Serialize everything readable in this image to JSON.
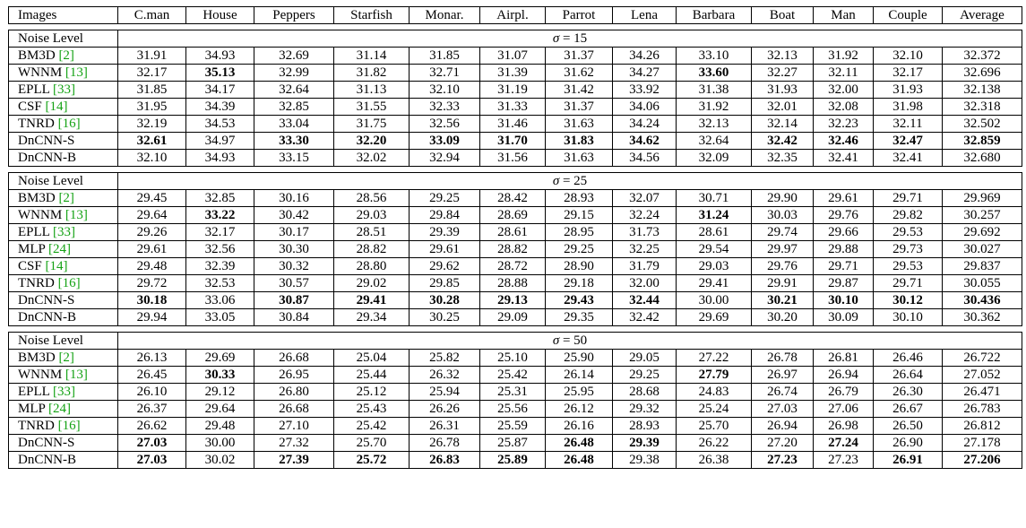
{
  "header": [
    "Images",
    "C.man",
    "House",
    "Peppers",
    "Starfish",
    "Monar.",
    "Airpl.",
    "Parrot",
    "Lena",
    "Barbara",
    "Boat",
    "Man",
    "Couple",
    "Average"
  ],
  "sections": [
    {
      "label": "Noise Level",
      "sigma_symbol": "σ",
      "sigma_eq": "= 15",
      "rows": [
        {
          "method": "BM3D",
          "cite": "[2]",
          "values": [
            "31.91",
            "34.93",
            "32.69",
            "31.14",
            "31.85",
            "31.07",
            "31.37",
            "34.26",
            "33.10",
            "32.13",
            "31.92",
            "32.10",
            "32.372"
          ],
          "bold": []
        },
        {
          "method": "WNNM",
          "cite": "[13]",
          "values": [
            "32.17",
            "35.13",
            "32.99",
            "31.82",
            "32.71",
            "31.39",
            "31.62",
            "34.27",
            "33.60",
            "32.27",
            "32.11",
            "32.17",
            "32.696"
          ],
          "bold": [
            1,
            8
          ]
        },
        {
          "method": "EPLL",
          "cite": "[33]",
          "values": [
            "31.85",
            "34.17",
            "32.64",
            "31.13",
            "32.10",
            "31.19",
            "31.42",
            "33.92",
            "31.38",
            "31.93",
            "32.00",
            "31.93",
            "32.138"
          ],
          "bold": []
        },
        {
          "method": "CSF",
          "cite": "[14]",
          "values": [
            "31.95",
            "34.39",
            "32.85",
            "31.55",
            "32.33",
            "31.33",
            "31.37",
            "34.06",
            "31.92",
            "32.01",
            "32.08",
            "31.98",
            "32.318"
          ],
          "bold": []
        },
        {
          "method": "TNRD",
          "cite": "[16]",
          "values": [
            "32.19",
            "34.53",
            "33.04",
            "31.75",
            "32.56",
            "31.46",
            "31.63",
            "34.24",
            "32.13",
            "32.14",
            "32.23",
            "32.11",
            "32.502"
          ],
          "bold": []
        },
        {
          "method": "DnCNN-S",
          "cite": "",
          "values": [
            "32.61",
            "34.97",
            "33.30",
            "32.20",
            "33.09",
            "31.70",
            "31.83",
            "34.62",
            "32.64",
            "32.42",
            "32.46",
            "32.47",
            "32.859"
          ],
          "bold": [
            0,
            2,
            3,
            4,
            5,
            6,
            7,
            9,
            10,
            11,
            12
          ]
        },
        {
          "method": "DnCNN-B",
          "cite": "",
          "values": [
            "32.10",
            "34.93",
            "33.15",
            "32.02",
            "32.94",
            "31.56",
            "31.63",
            "34.56",
            "32.09",
            "32.35",
            "32.41",
            "32.41",
            "32.680"
          ],
          "bold": []
        }
      ]
    },
    {
      "label": "Noise Level",
      "sigma_symbol": "σ",
      "sigma_eq": "= 25",
      "rows": [
        {
          "method": "BM3D",
          "cite": "[2]",
          "values": [
            "29.45",
            "32.85",
            "30.16",
            "28.56",
            "29.25",
            "28.42",
            "28.93",
            "32.07",
            "30.71",
            "29.90",
            "29.61",
            "29.71",
            "29.969"
          ],
          "bold": []
        },
        {
          "method": "WNNM",
          "cite": "[13]",
          "values": [
            "29.64",
            "33.22",
            "30.42",
            "29.03",
            "29.84",
            "28.69",
            "29.15",
            "32.24",
            "31.24",
            "30.03",
            "29.76",
            "29.82",
            "30.257"
          ],
          "bold": [
            1,
            8
          ]
        },
        {
          "method": "EPLL",
          "cite": "[33]",
          "values": [
            "29.26",
            "32.17",
            "30.17",
            "28.51",
            "29.39",
            "28.61",
            "28.95",
            "31.73",
            "28.61",
            "29.74",
            "29.66",
            "29.53",
            "29.692"
          ],
          "bold": []
        },
        {
          "method": "MLP",
          "cite": "[24]",
          "values": [
            "29.61",
            "32.56",
            "30.30",
            "28.82",
            "29.61",
            "28.82",
            "29.25",
            "32.25",
            "29.54",
            "29.97",
            "29.88",
            "29.73",
            "30.027"
          ],
          "bold": []
        },
        {
          "method": "CSF",
          "cite": "[14]",
          "values": [
            "29.48",
            "32.39",
            "30.32",
            "28.80",
            "29.62",
            "28.72",
            "28.90",
            "31.79",
            "29.03",
            "29.76",
            "29.71",
            "29.53",
            "29.837"
          ],
          "bold": []
        },
        {
          "method": "TNRD",
          "cite": "[16]",
          "values": [
            "29.72",
            "32.53",
            "30.57",
            "29.02",
            "29.85",
            "28.88",
            "29.18",
            "32.00",
            "29.41",
            "29.91",
            "29.87",
            "29.71",
            "30.055"
          ],
          "bold": []
        },
        {
          "method": "DnCNN-S",
          "cite": "",
          "values": [
            "30.18",
            "33.06",
            "30.87",
            "29.41",
            "30.28",
            "29.13",
            "29.43",
            "32.44",
            "30.00",
            "30.21",
            "30.10",
            "30.12",
            "30.436"
          ],
          "bold": [
            0,
            2,
            3,
            4,
            5,
            6,
            7,
            9,
            10,
            11,
            12
          ]
        },
        {
          "method": "DnCNN-B",
          "cite": "",
          "values": [
            "29.94",
            "33.05",
            "30.84",
            "29.34",
            "30.25",
            "29.09",
            "29.35",
            "32.42",
            "29.69",
            "30.20",
            "30.09",
            "30.10",
            "30.362"
          ],
          "bold": []
        }
      ]
    },
    {
      "label": "Noise Level",
      "sigma_symbol": "σ",
      "sigma_eq": "= 50",
      "rows": [
        {
          "method": "BM3D",
          "cite": "[2]",
          "values": [
            "26.13",
            "29.69",
            "26.68",
            "25.04",
            "25.82",
            "25.10",
            "25.90",
            "29.05",
            "27.22",
            "26.78",
            "26.81",
            "26.46",
            "26.722"
          ],
          "bold": []
        },
        {
          "method": "WNNM",
          "cite": "[13]",
          "values": [
            "26.45",
            "30.33",
            "26.95",
            "25.44",
            "26.32",
            "25.42",
            "26.14",
            "29.25",
            "27.79",
            "26.97",
            "26.94",
            "26.64",
            "27.052"
          ],
          "bold": [
            1,
            8
          ]
        },
        {
          "method": "EPLL",
          "cite": "[33]",
          "values": [
            "26.10",
            "29.12",
            "26.80",
            "25.12",
            "25.94",
            "25.31",
            "25.95",
            "28.68",
            "24.83",
            "26.74",
            "26.79",
            "26.30",
            "26.471"
          ],
          "bold": []
        },
        {
          "method": "MLP",
          "cite": "[24]",
          "values": [
            "26.37",
            "29.64",
            "26.68",
            "25.43",
            "26.26",
            "25.56",
            "26.12",
            "29.32",
            "25.24",
            "27.03",
            "27.06",
            "26.67",
            "26.783"
          ],
          "bold": []
        },
        {
          "method": "TNRD",
          "cite": "[16]",
          "values": [
            "26.62",
            "29.48",
            "27.10",
            "25.42",
            "26.31",
            "25.59",
            "26.16",
            "28.93",
            "25.70",
            "26.94",
            "26.98",
            "26.50",
            "26.812"
          ],
          "bold": []
        },
        {
          "method": "DnCNN-S",
          "cite": "",
          "values": [
            "27.03",
            "30.00",
            "27.32",
            "25.70",
            "26.78",
            "25.87",
            "26.48",
            "29.39",
            "26.22",
            "27.20",
            "27.24",
            "26.90",
            "27.178"
          ],
          "bold": [
            0,
            6,
            7,
            10
          ]
        },
        {
          "method": "DnCNN-B",
          "cite": "",
          "values": [
            "27.03",
            "30.02",
            "27.39",
            "25.72",
            "26.83",
            "25.89",
            "26.48",
            "29.38",
            "26.38",
            "27.23",
            "27.23",
            "26.91",
            "27.206"
          ],
          "bold": [
            0,
            2,
            3,
            4,
            5,
            6,
            9,
            11,
            12
          ]
        }
      ]
    }
  ]
}
